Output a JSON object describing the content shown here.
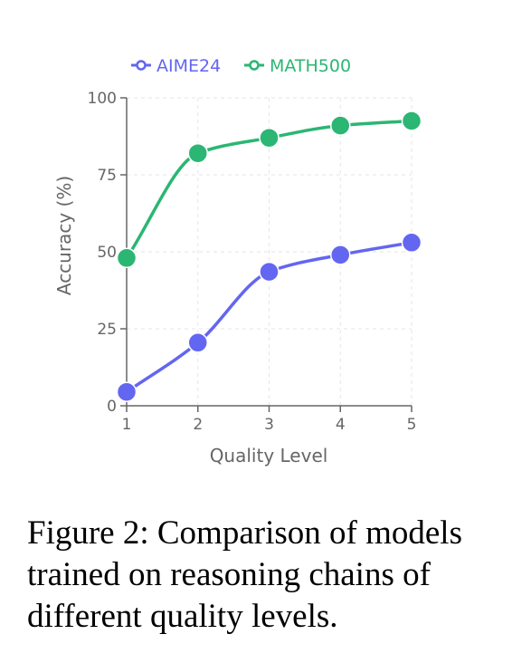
{
  "chart_data": {
    "type": "line",
    "title": "",
    "xlabel": "Quality Level",
    "ylabel": "Accuracy (%)",
    "x": [
      1,
      2,
      3,
      4,
      5
    ],
    "xticks": [
      "1",
      "2",
      "3",
      "4",
      "5"
    ],
    "ylim": [
      0,
      100
    ],
    "yticks": [
      "0",
      "25",
      "50",
      "75",
      "100"
    ],
    "ytick_values": [
      0,
      25,
      50,
      75,
      100
    ],
    "grid": true,
    "legend_position": "top",
    "series": [
      {
        "name": "AIME24",
        "color": "#6366f1",
        "values": [
          4.5,
          20.5,
          43.5,
          49,
          53
        ]
      },
      {
        "name": "MATH500",
        "color": "#2bb673",
        "values": [
          48,
          82,
          87,
          91,
          92.5
        ]
      }
    ]
  },
  "caption": "Figure 2: Comparison of models trained on reasoning chains of different quality levels."
}
